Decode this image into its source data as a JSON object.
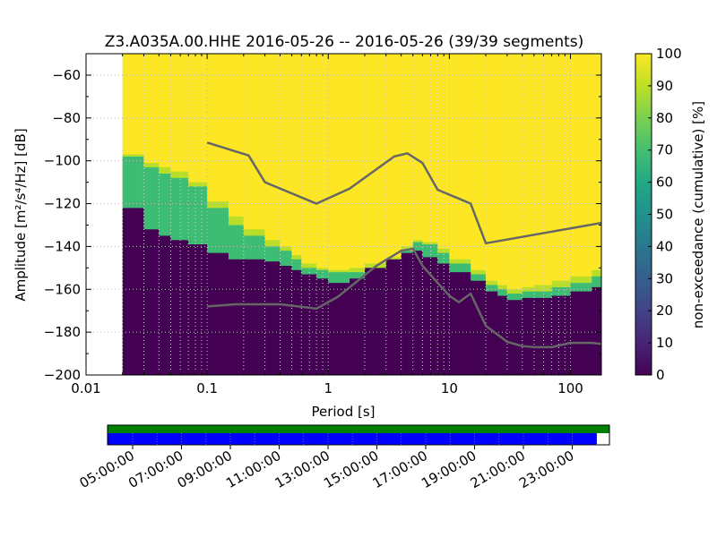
{
  "chart_data": [
    {
      "type": "heatmap",
      "title": "Z3.A035A.00.HHE   2016-05-26 -- 2016-05-26  (39/39 segments)",
      "xlabel": "Period [s]",
      "ylabel": "Amplitude [m²/s⁴/Hz] [dB]",
      "x_scale": "log",
      "xlim": [
        0.01,
        180
      ],
      "ylim": [
        -200,
        -50
      ],
      "x_ticks": [
        {
          "value": 0.01,
          "label": "0.01"
        },
        {
          "value": 0.1,
          "label": "0.1"
        },
        {
          "value": 1,
          "label": "1"
        },
        {
          "value": 10,
          "label": "10"
        },
        {
          "value": 100,
          "label": "100"
        }
      ],
      "y_ticks": [
        {
          "value": -60,
          "label": "−60"
        },
        {
          "value": -80,
          "label": "−80"
        },
        {
          "value": -100,
          "label": "−100"
        },
        {
          "value": -120,
          "label": "−120"
        },
        {
          "value": -140,
          "label": "−140"
        },
        {
          "value": -160,
          "label": "−160"
        },
        {
          "value": -180,
          "label": "−180"
        },
        {
          "value": -200,
          "label": "−200"
        }
      ],
      "grid": true,
      "data_start_period": 0.02,
      "colormap": "viridis",
      "colors": {
        "dark": "#440154",
        "green": "#3dbc74",
        "lightgreen": "#b8de29",
        "yellow": "#fde725",
        "noise_model": "#666666",
        "grid": "#cccccc"
      },
      "bands": {
        "period": [
          0.02,
          0.03,
          0.04,
          0.05,
          0.07,
          0.1,
          0.15,
          0.2,
          0.3,
          0.4,
          0.5,
          0.6,
          0.8,
          1.0,
          1.5,
          2,
          3,
          4,
          5,
          6,
          8,
          10,
          15,
          20,
          25,
          30,
          40,
          50,
          70,
          100,
          150,
          180
        ],
        "dark_top": [
          -122,
          -132,
          -135,
          -137,
          -139,
          -143,
          -146,
          -146,
          -147,
          -149,
          -151,
          -153,
          -155,
          -157,
          -155,
          -150,
          -146,
          -143,
          -142,
          -145,
          -148,
          -152,
          -156,
          -161,
          -163,
          -165,
          -164,
          -164,
          -163,
          -161,
          -159,
          -158
        ],
        "green_top": [
          -98,
          -103,
          -106,
          -108,
          -112,
          -122,
          -130,
          -135,
          -140,
          -142,
          -146,
          -150,
          -151,
          -152,
          -152,
          -150,
          -147,
          -142,
          -138,
          -139,
          -143,
          -148,
          -153,
          -158,
          -160,
          -162,
          -161,
          -161,
          -159,
          -157,
          -154,
          -152
        ],
        "lightgreen_top": [
          -97,
          -101,
          -103,
          -105,
          -110,
          -119,
          -126,
          -132,
          -137,
          -140,
          -144,
          -148,
          -150,
          -151,
          -150,
          -148,
          -145,
          -140,
          -137,
          -138,
          -141,
          -146,
          -151,
          -156,
          -158,
          -160,
          -159,
          -158,
          -156,
          -154,
          -151,
          -149
        ]
      },
      "series": [
        {
          "name": "",
          "type": "line",
          "x": [
            0.1,
            0.22,
            0.3,
            0.8,
            1.5,
            3.5,
            4.5,
            6.0,
            8.0,
            15,
            20,
            180
          ],
          "y": [
            -91.5,
            -97.5,
            -110,
            -120,
            -113,
            -98,
            -96.5,
            -101,
            -113.5,
            -120,
            -138.5,
            -129
          ]
        },
        {
          "name": "",
          "type": "line",
          "x": [
            0.1,
            0.17,
            0.4,
            0.8,
            1.2,
            2.5,
            4.0,
            5.0,
            6.0,
            8.0,
            10,
            12,
            15,
            20,
            30,
            40,
            50,
            70,
            100,
            150,
            180
          ],
          "y": [
            -168,
            -167,
            -167,
            -169,
            -163.5,
            -149,
            -142,
            -141,
            -149,
            -157,
            -163,
            -166,
            -162,
            -177,
            -184.5,
            -186.5,
            -187,
            -187,
            -185,
            -185,
            -185.5
          ]
        }
      ],
      "colorbar": {
        "label": "non-exceedance (cumulative) [%]",
        "range": [
          0,
          100
        ],
        "ticks": [
          "0",
          "10",
          "20",
          "30",
          "40",
          "50",
          "60",
          "70",
          "80",
          "90",
          "100"
        ]
      }
    },
    {
      "type": "timeline",
      "tick_labels": [
        "05:00:00",
        "07:00:00",
        "09:00:00",
        "11:00:00",
        "13:00:00",
        "15:00:00",
        "17:00:00",
        "19:00:00",
        "21:00:00",
        "23:00:00"
      ],
      "green_color": "#008000",
      "blue_color": "#0000ff",
      "blue_fraction": 0.975
    }
  ]
}
